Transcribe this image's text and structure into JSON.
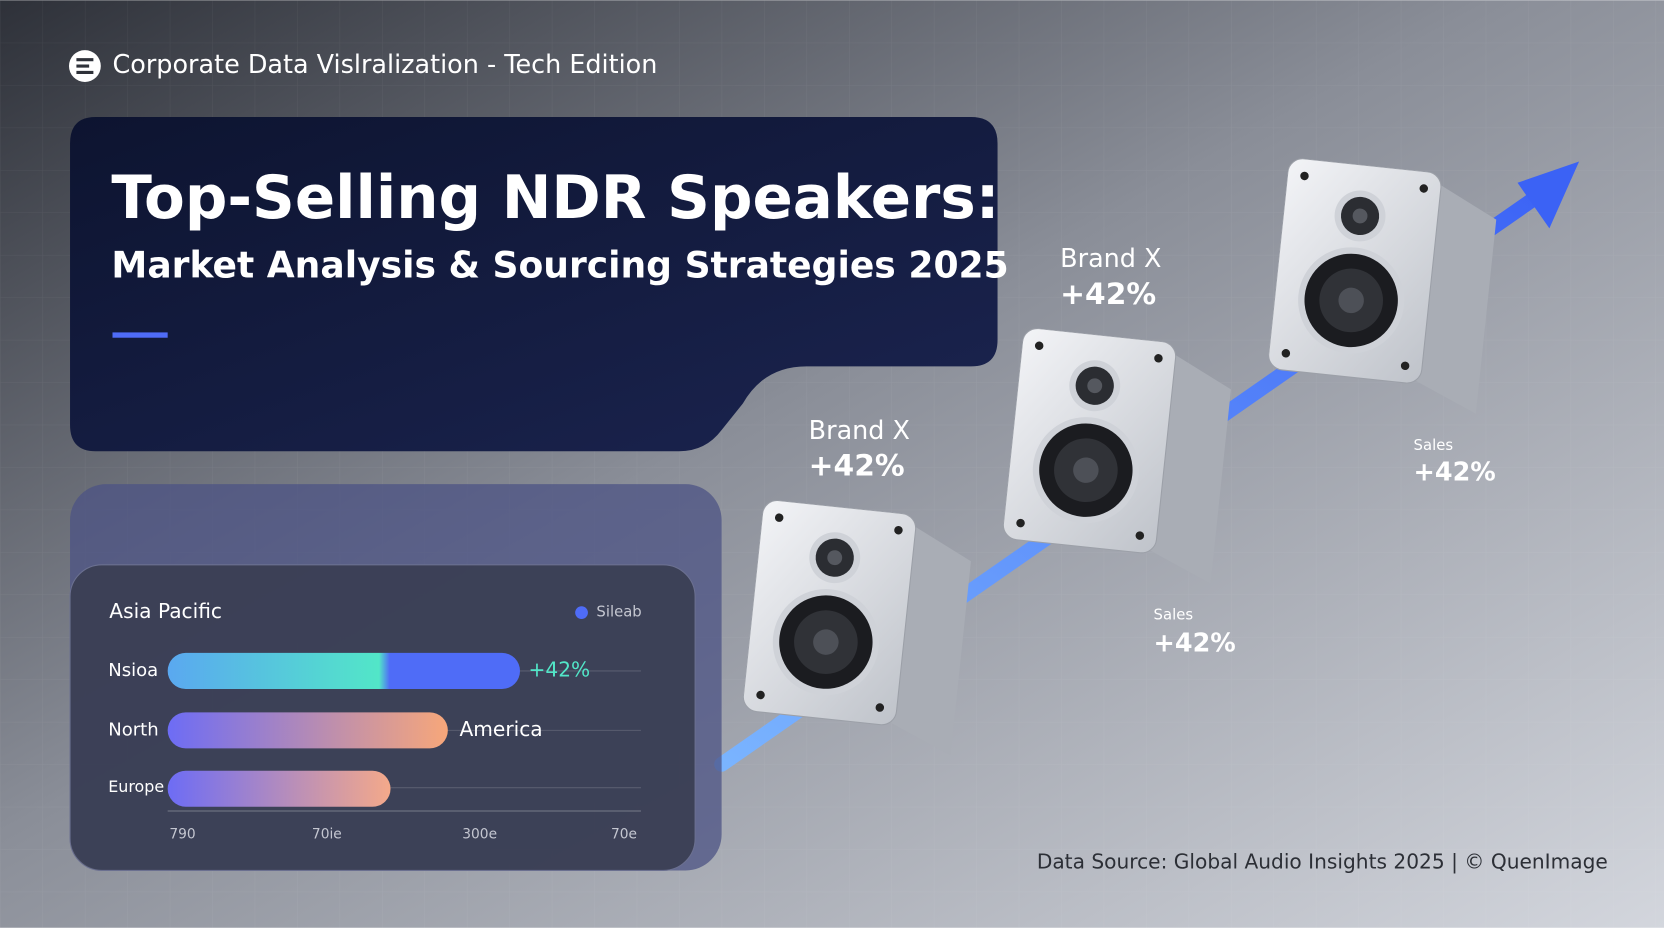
{
  "header": {
    "brand": "Corporate Data Vislralization - Tech Edition"
  },
  "hero": {
    "title": "Top-Selling NDR Speakers:",
    "subtitle": "Market Analysis & Sourcing Strategies 2025"
  },
  "panel": {
    "title": "Asia Pacific",
    "legend": "Sileab",
    "rows": [
      {
        "label": "Nsioa",
        "note": "+42%"
      },
      {
        "label": "North",
        "note": "America"
      },
      {
        "label": "Europe"
      }
    ],
    "axis_labels": [
      "790",
      "70ie",
      "300e",
      "70e"
    ]
  },
  "callouts": [
    {
      "label": "Brand X",
      "value": "+42%"
    },
    {
      "label": "Brand X",
      "value": "+42%"
    },
    {
      "label": "Sales",
      "value": "+42%"
    },
    {
      "label": "Sales",
      "value": "+42%"
    }
  ],
  "footer": {
    "source": "Data Source: Global Audio Insights 2025 | © QuenImage"
  }
}
